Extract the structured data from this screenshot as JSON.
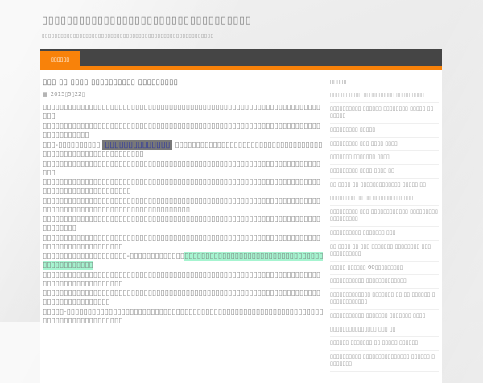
{
  "header": {
    "site_title": "▯▯▯▯▯▯▯▯▯▯▯▯▯▯▯▯▯▯▯▯▯▯▯▯▯▯▯▯▯▯▯▯▯▯",
    "tagline": "▯▯▯▯▯▯▯▯▯▯▯▯▯▯▯▯▯▯▯▯▯▯▯▯▯▯▯▯▯▯▯▯▯▯▯▯▯▯▯▯▯▯▯▯▯▯▯▯▯▯▯▯▯▯▯"
  },
  "nav": {
    "home_label": "▯▯▯▯▯▯"
  },
  "post": {
    "title": "▯▯▯ ▯▯ ▯▯▯▯ ▯▯▯▯▯▯▯▯▯▯ ▯▯▯▯▯▯▯▯▯",
    "date_icon": "▦",
    "date": "2015▯5▯22▯",
    "paragraphs": [
      [
        {
          "t": "▯▯▯▯▯▯▯▯▯▯▯▯▯▯▯▯▯▯▯▯▯▯▯▯▯▯▯▯▯▯▯▯▯▯▯▯▯▯▯▯▯▯▯▯▯▯▯▯▯▯▯▯▯▯▯▯▯▯▯▯▯▯▯▯▯▯▯▯▯"
        }
      ],
      [
        {
          "t": "▯▯▯▯▯▯▯▯▯▯▯▯▯▯▯▯▯▯▯▯▯▯▯▯▯▯▯▯▯▯▯▯▯▯▯▯▯▯▯▯▯▯▯▯▯▯▯▯▯▯▯▯▯▯▯▯▯▯▯▯▯▯▯▯▯▯▯▯▯▯▯▯▯▯▯▯▯"
        }
      ],
      [
        {
          "t": "▯▯▯-▯▯▯▯▯▯▯▯▯▯ "
        },
        {
          "t": "▯▯▯▯▯▯▯▯▯▯▯▯▯▯",
          "s": "hl-link"
        },
        {
          "t": " ▯▯▯▯▯▯▯▯▯▯▯▯▯▯▯▯▯▯▯▯▯▯▯▯▯▯▯▯▯▯▯▯▯▯▯▯▯▯▯▯▯▯▯▯▯▯▯▯▯▯▯▯▯▯▯▯▯▯▯"
        }
      ],
      [
        {
          "t": "▯▯▯▯▯▯▯▯▯▯▯▯▯▯▯▯▯▯▯▯▯▯▯▯▯▯▯▯▯▯▯▯▯▯▯▯▯▯▯▯▯▯▯▯▯▯▯▯▯▯▯▯▯▯▯▯▯▯▯▯▯▯▯▯▯▯▯▯▯"
        }
      ],
      [
        {
          "t": "▯▯▯▯▯▯▯▯▯▯▯▯▯▯▯▯▯▯▯▯▯▯▯▯▯▯▯▯▯▯▯▯▯▯▯▯▯▯▯▯▯▯▯▯▯▯▯▯▯▯▯▯▯▯▯▯▯▯▯▯▯▯▯▯▯▯▯▯▯▯▯▯▯▯▯▯▯▯▯▯▯▯▯▯▯▯▯"
        }
      ],
      [
        {
          "t": "▯▯▯▯▯▯▯▯▯▯▯▯▯▯▯▯▯▯▯▯▯▯▯▯▯▯▯▯▯▯▯▯▯▯▯▯▯▯▯▯▯▯▯▯▯▯▯▯▯▯▯▯▯▯▯▯▯▯▯▯▯▯▯▯▯▯▯▯▯▯▯▯▯▯▯▯▯▯▯▯▯▯▯▯▯▯▯▯▯▯▯▯▯▯▯▯▯▯▯▯▯"
        }
      ],
      [
        {
          "t": "▯▯▯▯▯▯▯▯▯▯▯▯▯▯▯▯▯▯▯▯▯▯▯▯▯▯▯▯▯▯▯▯▯▯▯▯▯▯▯▯▯▯▯▯▯▯▯▯▯▯▯▯▯▯▯▯▯▯▯▯▯▯▯▯▯▯▯▯▯▯▯▯▯▯"
        }
      ],
      [
        {
          "t": "▯▯▯▯▯▯▯▯▯▯▯▯▯▯▯▯▯▯▯▯▯▯▯▯▯▯▯▯▯▯▯▯▯▯▯▯▯▯▯▯▯▯▯▯▯▯▯▯▯▯▯▯▯▯▯▯▯▯▯▯▯▯▯▯▯▯▯▯▯▯▯▯▯▯▯▯▯▯▯▯▯▯▯▯▯"
        }
      ],
      [
        {
          "t": "▯▯▯▯▯▯▯▯▯▯▯▯▯▯▯▯▯▯▯▯-▯▯▯▯▯▯▯▯▯▯▯▯▯"
        },
        {
          "t": "▯▯▯▯▯▯▯▯▯▯▯▯▯▯▯▯▯▯▯▯▯▯▯▯▯▯▯▯▯▯▯▯▯▯▯▯▯▯▯▯▯▯▯▯▯",
          "s": "hl-green"
        }
      ],
      [
        {
          "t": "▯▯▯▯▯▯▯▯▯▯▯▯▯▯▯▯▯▯▯▯▯▯▯▯▯▯▯▯▯▯▯▯▯▯▯▯▯▯▯▯▯▯▯▯▯▯▯▯▯▯▯▯▯▯▯▯▯▯▯▯▯▯▯▯▯▯▯▯▯▯▯▯▯▯▯▯▯▯▯▯▯▯▯▯▯"
        }
      ],
      [
        {
          "t": "▯▯▯▯▯▯▯▯▯▯▯▯▯▯▯▯▯▯▯▯▯▯▯▯▯▯▯▯▯▯▯▯▯▯▯▯▯▯▯▯▯▯▯▯▯▯▯▯▯▯▯▯▯▯▯▯▯▯▯▯▯▯▯▯▯▯▯▯▯▯▯▯▯▯▯▯▯▯▯▯▯▯"
        }
      ],
      [
        {
          "t": "▯▯▯▯▯-▯▯▯▯▯▯▯▯▯▯▯▯▯▯▯▯▯▯▯▯▯▯▯▯▯▯▯▯▯▯▯▯▯▯▯▯▯▯▯▯▯▯▯▯▯▯▯▯▯▯▯▯▯▯▯▯▯▯▯▯▯▯▯▯▯▯▯▯▯▯▯▯▯▯▯▯▯▯▯▯"
        }
      ]
    ]
  },
  "sidebar": {
    "heading": "▯▯▯▯▯",
    "items": [
      "▯▯▯ ▯▯ ▯▯▯▯ ▯▯▯▯▯▯▯▯▯▯ ▯▯▯▯▯▯▯▯▯",
      "▯▯▯▯▯▯▯▯▯▯ ▯▯▯▯▯▯ ▯▯▯▯▯▯▯▯ ▯▯▯▯▯ ▯▯ ▯▯▯▯▯",
      "▯▯▯▯▯▯▯▯▯ ▯▯▯▯▯",
      "▯▯▯▯▯▯▯▯▯ ▯▯▯ ▯▯▯▯ ▯▯▯▯",
      "▯▯▯▯▯▯▯ ▯▯▯▯▯▯▯ ▯▯▯▯",
      "▯▯▯▯▯▯▯▯▯ ▯▯▯▯ ▯▯▯▯ ▯▯",
      "▯▯ ▯▯▯▯ ▯▯ ▯▯▯▯▯▯▯▯▯▯▯▯▯ ▯▯▯▯▯ ▯▯",
      "▯▯▯▯▯▯▯▯ ▯▯ ▯▯ ▯▯▯▯▯▯▯▯▯▯▯▯▯",
      "▯▯▯▯▯▯▯▯▯ ▯▯▯ ▯▯▯▯▯▯▯▯▯▯▯▯ ▯▯▯▯▯▯▯▯▯ ▯▯▯▯▯▯▯▯▯",
      "▯▯▯▯▯▯▯▯▯▯ ▯▯▯▯▯▯▯ ▯▯▯",
      "▯▯ ▯▯▯▯ ▯▯ ▯▯▯ ▯▯▯▯▯▯▯ ▯▯▯▯▯▯▯▯ ▯▯▯ ▯▯▯▯▯▯▯▯▯▯",
      "▯▯▯▯▯ ▯▯▯▯▯▯ 60▯▯▯▯▯▯▯▯▯",
      "▯▯▯▯▯▯▯▯▯▯▯ ▯▯▯▯▯▯▯▯▯▯▯▯▯",
      "▯▯▯▯▯▯▯▯▯▯▯▯▯ ▯▯▯▯▯▯▯ ▯▯ ▯▯ ▯▯▯▯▯▯ ▯ ▯▯▯▯▯▯▯▯▯▯▯▯",
      "▯▯▯▯▯▯▯▯▯▯▯ ▯▯▯▯▯▯▯ ▯▯▯▯▯▯▯ ▯▯▯▯",
      "▯▯▯▯▯▯▯▯▯▯▯▯▯▯▯ ▯▯▯ ▯▯",
      "▯▯▯▯▯▯ ▯▯▯▯▯▯▯ ▯▯ ▯▯▯▯▯ ▯▯▯▯▯▯",
      "▯▯▯▯▯▯▯▯▯▯ ▯▯▯▯▯▯▯▯▯▯▯▯▯▯▯ ▯▯▯▯▯▯ ▯ ▯▯▯▯▯▯▯"
    ]
  },
  "colors": {
    "accent_orange": "#f8820a",
    "nav_dark": "#454545",
    "link_highlight_bg": "#787878",
    "link_highlight_text": "#2b35a0",
    "green_highlight_bg": "#a6f4d0",
    "page_bg": "#e9e9e9",
    "card_bg": "#ffffff",
    "text_gray": "#8f8f8f"
  }
}
